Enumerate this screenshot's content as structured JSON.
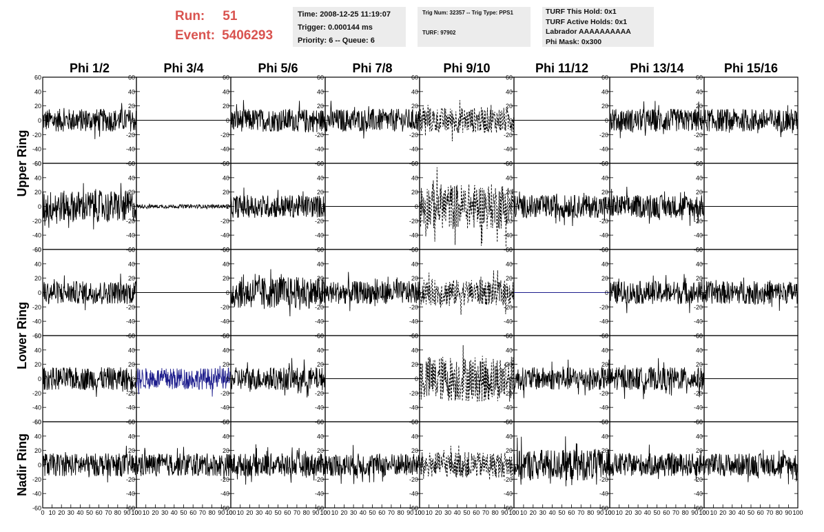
{
  "header": {
    "run_label": "Run:",
    "run_value": "51",
    "event_label": "Event:",
    "event_value": "5406293",
    "header_color": "#d9534f"
  },
  "info_box_1": {
    "time": "Time: 2008-12-25 11:19:07",
    "trigger": "Trigger: 0.000144 ms",
    "priority": "Priority: 6 -- Queue: 6"
  },
  "info_box_2": {
    "trig": "Trig Num: 32357 -- Trig Type: PPS1",
    "turf": "TURF: 97902"
  },
  "info_box_3": {
    "hold": "TURF This Hold: 0x1",
    "active": "TURF Active Holds: 0x1",
    "labrador": "Labrador AAAAAAAAAA",
    "mask": "Phi Mask: 0x300"
  },
  "chart_data": {
    "type": "line",
    "column_titles": [
      "Phi 1/2",
      "Phi 3/4",
      "Phi 5/6",
      "Phi 7/8",
      "Phi 9/10",
      "Phi 11/12",
      "Phi 13/14",
      "Phi 15/16"
    ],
    "row_group_labels": [
      "Upper Ring",
      "Lower Ring",
      "Nadir Ring"
    ],
    "x_ticks": [
      "0",
      "10",
      "20",
      "30",
      "40",
      "50",
      "60",
      "70",
      "80",
      "90",
      "100"
    ],
    "y_ticks": [
      "60",
      "40",
      "20",
      "0",
      "-20",
      "-40",
      "-60"
    ],
    "xlim": [
      0,
      100
    ],
    "ylim": [
      -60,
      60
    ],
    "grid": false,
    "colors": {
      "trace": "#000000",
      "blue_trace": "#1c1c8c"
    },
    "panels": [
      [
        "noise",
        "flat",
        "noise",
        "noise",
        "dashed",
        "flat",
        "noise",
        "noise"
      ],
      [
        "noise-l",
        "flat-small",
        "noise",
        "flat",
        "dashed-big",
        "noise",
        "noise",
        "flat"
      ],
      [
        "noise",
        "flat",
        "noise-l",
        "noise",
        "dashed",
        "flat-blue",
        "noise",
        "noise"
      ],
      [
        "noise",
        "noise-blue",
        "noise",
        "flat",
        "dashed-big",
        "noise",
        "noise",
        "flat"
      ],
      [
        "noise",
        "noise",
        "noise",
        "noise",
        "dashed",
        "noise-l",
        "noise",
        "noise"
      ]
    ]
  }
}
